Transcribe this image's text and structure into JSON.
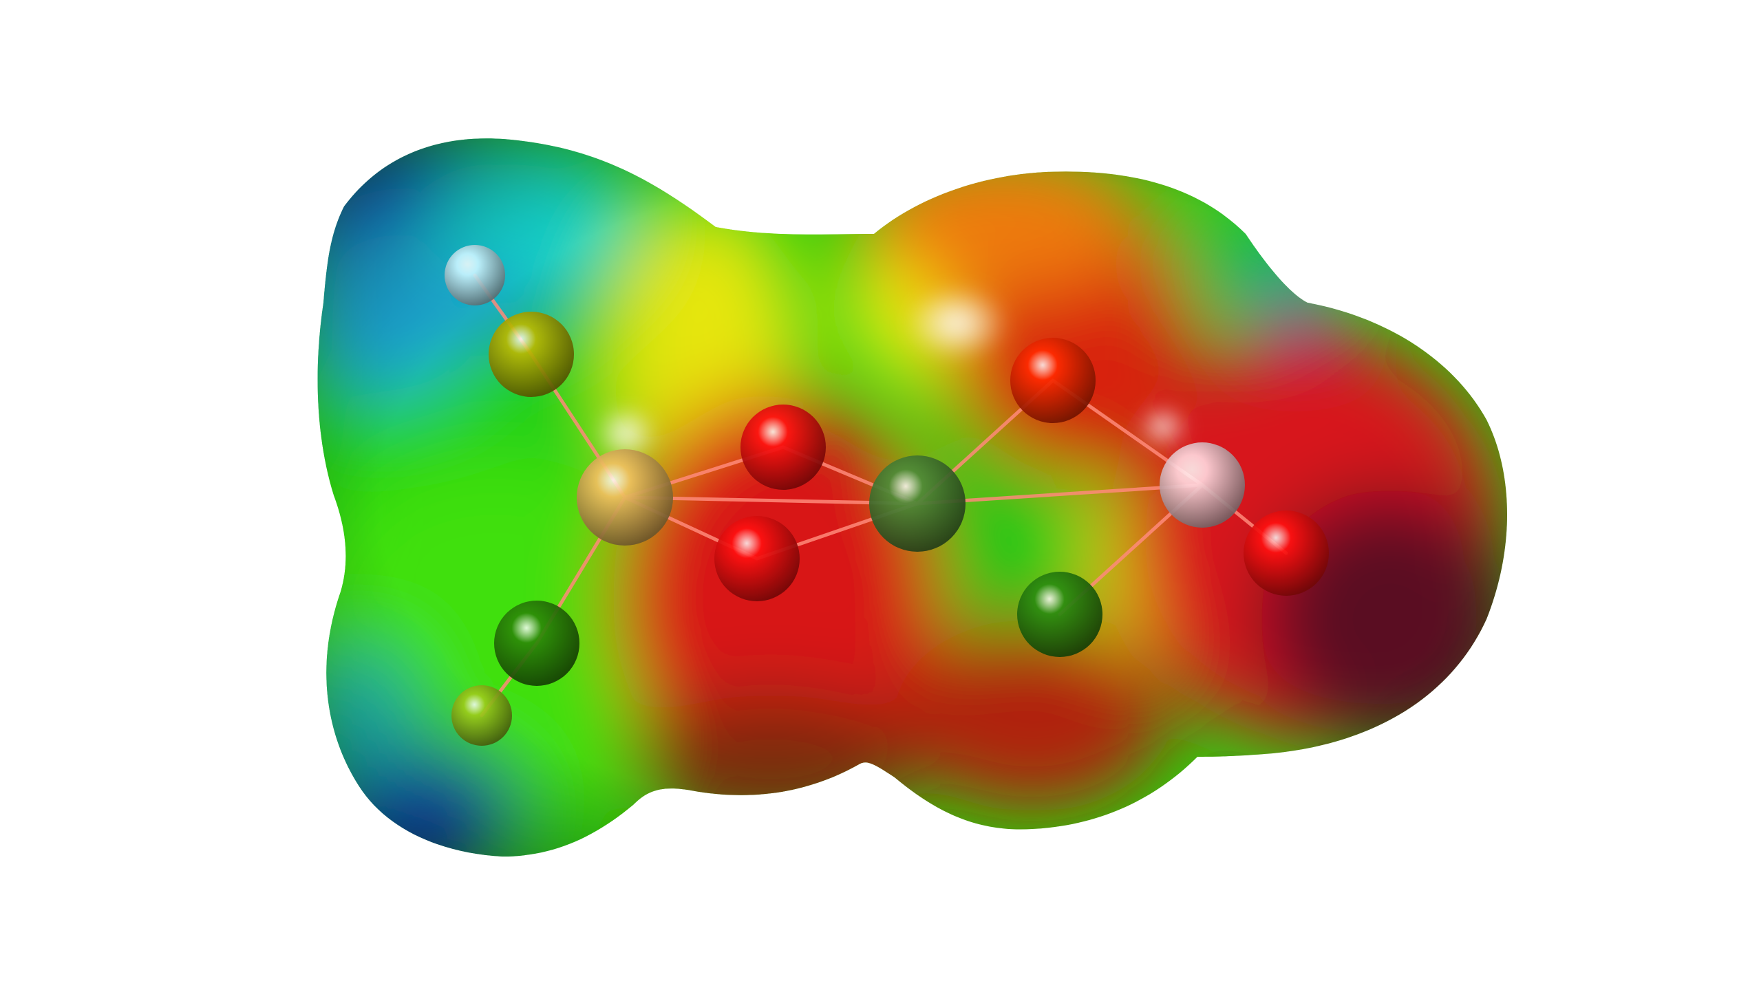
{
  "scene": {
    "background": "#ffffff",
    "surface_colors": {
      "blue": "#0a1fd0",
      "cyan": "#19d9d0",
      "green": "#22d40a",
      "yellow": "#e8e80a",
      "orange": "#f07a0a",
      "red": "#e01616",
      "dark_red": "#4a1020"
    },
    "atoms": [
      {
        "name": "hydrogen-atom-top-left",
        "color": "#c8f4ff"
      },
      {
        "name": "carbon-atom-upper-left",
        "color": "#b8b800"
      },
      {
        "name": "metal-atom-left",
        "color": "#f0c060"
      },
      {
        "name": "carbon-atom-lower-left",
        "color": "#2c8a08"
      },
      {
        "name": "hydrogen-atom-bottom-left",
        "color": "#9ccc1a"
      },
      {
        "name": "oxygen-atom-upper-center",
        "color": "#ff1010"
      },
      {
        "name": "oxygen-atom-lower-center",
        "color": "#ff1010"
      },
      {
        "name": "metal-atom-center",
        "color": "#4d8a38"
      },
      {
        "name": "oxygen-atom-upper-right",
        "color": "#ff2a00"
      },
      {
        "name": "carbon-atom-lower-right",
        "color": "#2a8c10"
      },
      {
        "name": "metal-atom-right",
        "color": "#ffd6dc"
      },
      {
        "name": "oxygen-atom-far-right",
        "color": "#ff1010"
      }
    ]
  }
}
